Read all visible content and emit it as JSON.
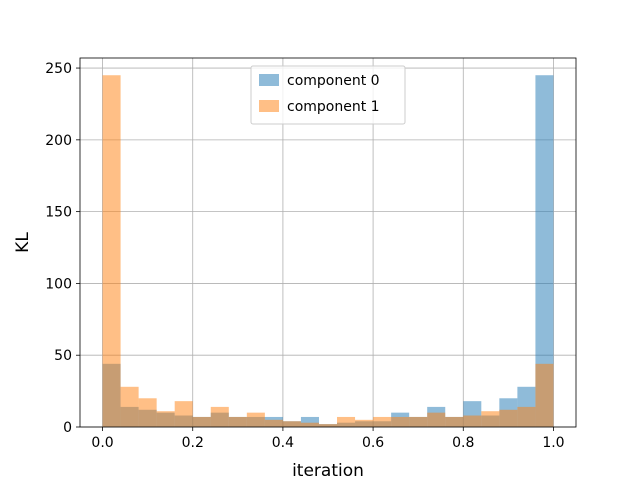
{
  "chart_data": {
    "type": "histogram",
    "xlabel": "iteration",
    "ylabel": "KL",
    "xlim": [
      -0.05,
      1.05
    ],
    "ylim": [
      0,
      257
    ],
    "xticks": [
      0.0,
      0.2,
      0.4,
      0.6,
      0.8,
      1.0
    ],
    "xtick_labels": [
      "0.0",
      "0.2",
      "0.4",
      "0.6",
      "0.8",
      "1.0"
    ],
    "yticks": [
      0,
      50,
      100,
      150,
      200,
      250
    ],
    "ytick_labels": [
      "0",
      "50",
      "100",
      "150",
      "200",
      "250"
    ],
    "grid": true,
    "legend_position": "upper center",
    "bin_edges": [
      0.0,
      0.04,
      0.08,
      0.12,
      0.16,
      0.2,
      0.24,
      0.28,
      0.32,
      0.36,
      0.4,
      0.44,
      0.48,
      0.52,
      0.56,
      0.6,
      0.64,
      0.68,
      0.72,
      0.76,
      0.8,
      0.84,
      0.88,
      0.92,
      0.96,
      1.0
    ],
    "series": [
      {
        "name": "component 0",
        "color": "#1f77b4",
        "values": [
          44,
          14,
          12,
          10,
          8,
          7,
          10,
          7,
          7,
          7,
          4,
          7,
          2,
          3,
          4,
          4,
          10,
          7,
          14,
          7,
          18,
          8,
          20,
          28,
          245
        ]
      },
      {
        "name": "component 1",
        "color": "#ff7f0e",
        "values": [
          245,
          28,
          20,
          11,
          18,
          7,
          14,
          7,
          10,
          5,
          4,
          3,
          2,
          7,
          5,
          7,
          7,
          7,
          10,
          7,
          8,
          11,
          12,
          14,
          44
        ]
      }
    ],
    "alpha": 0.5
  }
}
